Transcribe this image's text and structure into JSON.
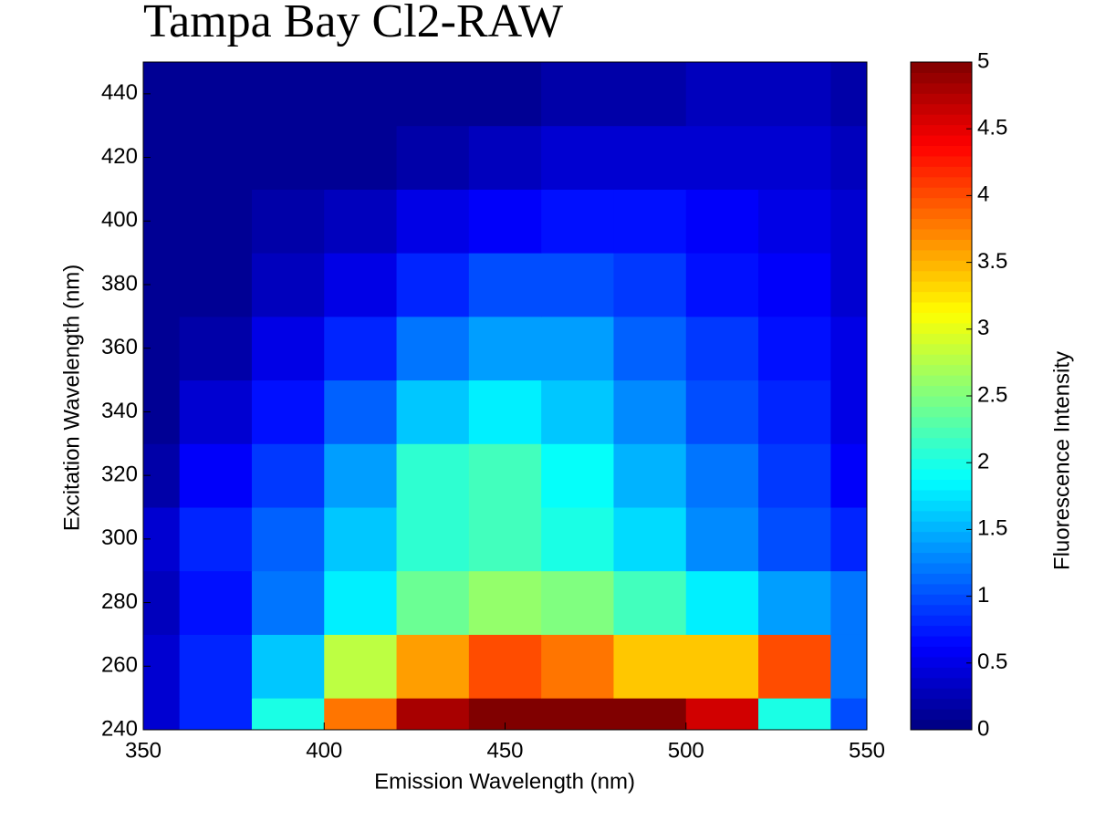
{
  "chart_data": {
    "type": "contour",
    "title": "Tampa Bay Cl2-RAW",
    "xlabel": "Emission Wavelength (nm)",
    "ylabel": "Excitation Wavelength (nm)",
    "colorbar_label": "Fluorescence Intensity",
    "x": [
      350,
      370,
      390,
      410,
      430,
      450,
      470,
      490,
      510,
      530,
      550
    ],
    "y": [
      240,
      260,
      280,
      300,
      320,
      340,
      360,
      380,
      400,
      420,
      440
    ],
    "z": [
      [
        0.4,
        0.8,
        2.0,
        3.8,
        4.8,
        5,
        5,
        5,
        4.6,
        2.0,
        1.0
      ],
      [
        0.4,
        0.8,
        1.6,
        2.8,
        3.6,
        4.0,
        3.8,
        3.4,
        3.4,
        4.0,
        1.2
      ],
      [
        0.3,
        0.7,
        1.2,
        1.8,
        2.4,
        2.6,
        2.5,
        2.2,
        1.8,
        1.4,
        1.2
      ],
      [
        0.4,
        0.8,
        1.1,
        1.6,
        2.1,
        2.2,
        2.0,
        1.7,
        1.3,
        1.0,
        0.8
      ],
      [
        0.2,
        0.6,
        0.9,
        1.4,
        2.1,
        2.2,
        1.9,
        1.5,
        1.2,
        0.9,
        0.6
      ],
      [
        0.1,
        0.4,
        0.7,
        1.1,
        1.6,
        1.8,
        1.6,
        1.3,
        1.0,
        0.8,
        0.5
      ],
      [
        0.1,
        0.2,
        0.5,
        0.8,
        1.2,
        1.4,
        1.4,
        1.1,
        0.9,
        0.7,
        0.5
      ],
      [
        0.1,
        0.1,
        0.3,
        0.5,
        0.8,
        1.0,
        1.0,
        0.9,
        0.7,
        0.6,
        0.4
      ],
      [
        0.1,
        0.1,
        0.2,
        0.3,
        0.5,
        0.6,
        0.7,
        0.7,
        0.6,
        0.5,
        0.4
      ],
      [
        0.1,
        0.1,
        0.1,
        0.1,
        0.2,
        0.3,
        0.4,
        0.4,
        0.4,
        0.4,
        0.3
      ],
      [
        0.1,
        0.1,
        0.1,
        0.1,
        0.1,
        0.1,
        0.2,
        0.2,
        0.3,
        0.3,
        0.2
      ]
    ],
    "xlim": [
      350,
      550
    ],
    "ylim": [
      240,
      450
    ],
    "xticks": [
      350,
      400,
      450,
      500,
      550
    ],
    "yticks": [
      240,
      260,
      280,
      300,
      320,
      340,
      360,
      380,
      400,
      420,
      440
    ],
    "clim": [
      0,
      5
    ],
    "cticks": [
      0,
      0.5,
      1,
      1.5,
      2,
      2.5,
      3,
      3.5,
      4,
      4.5,
      5
    ],
    "colormap": "jet"
  }
}
